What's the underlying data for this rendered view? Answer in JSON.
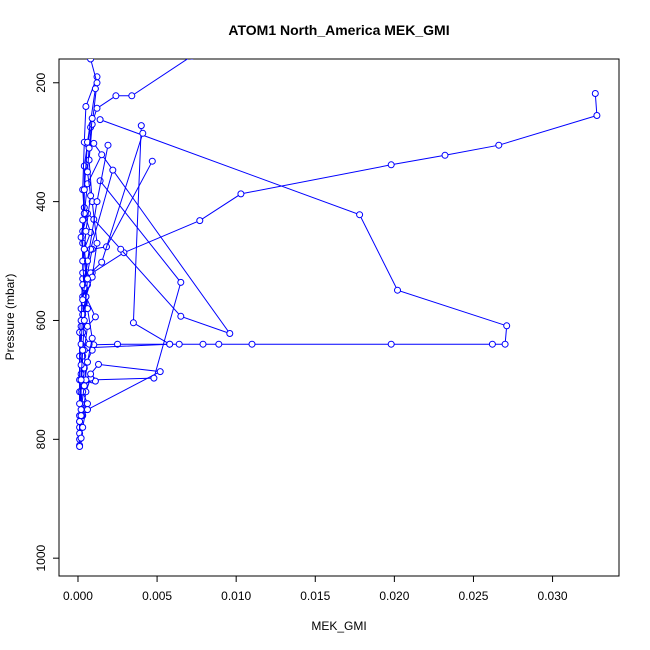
{
  "chart_data": {
    "type": "line",
    "title": "ATOM1 North_America MEK_GMI",
    "xlabel": "MEK_GMI",
    "ylabel": "Pressure (mbar)",
    "xlim": [
      -0.0012,
      0.0342
    ],
    "ylim": [
      1030,
      160
    ],
    "y_reversed": true,
    "grid": false,
    "x_ticks": [
      "0.000",
      "0.005",
      "0.010",
      "0.015",
      "0.020",
      "0.025",
      "0.030"
    ],
    "x_tick_values": [
      0,
      0.005,
      0.01,
      0.015,
      0.02,
      0.025,
      0.03
    ],
    "y_ticks": [
      "200",
      "400",
      "600",
      "800",
      "1000"
    ],
    "y_tick_values": [
      200,
      400,
      600,
      800,
      1000
    ],
    "series_color": "#0000ff",
    "series": [
      {
        "points": [
          [
            0.0327,
            218
          ],
          [
            0.0328,
            255
          ],
          [
            0.0266,
            305
          ],
          [
            0.0232,
            322
          ],
          [
            0.0198,
            338
          ],
          [
            0.0103,
            387
          ],
          [
            0.0077,
            432
          ],
          [
            0.0029,
            486
          ],
          [
            0.0009,
            520
          ],
          [
            0.0003,
            560
          ],
          [
            0.0002,
            610
          ],
          [
            0.0001,
            660
          ],
          [
            0.0001,
            720
          ],
          [
            0.0001,
            780
          ],
          [
            0.0001,
            810
          ]
        ]
      },
      {
        "points": [
          [
            0.0014,
            262
          ],
          [
            0.0178,
            422
          ],
          [
            0.0202,
            549
          ],
          [
            0.0271,
            609
          ],
          [
            0.027,
            640
          ],
          [
            0.0262,
            640
          ],
          [
            0.0198,
            640
          ],
          [
            0.011,
            640
          ],
          [
            0.0089,
            640
          ],
          [
            0.0079,
            640
          ],
          [
            0.0064,
            640
          ],
          [
            0.0058,
            640
          ],
          [
            0.0025,
            640
          ],
          [
            0.001,
            641
          ],
          [
            0.0006,
            645
          ],
          [
            0.0003,
            650
          ],
          [
            0.0002,
            690
          ],
          [
            0.0001,
            760
          ],
          [
            0.0001,
            800
          ]
        ]
      },
      {
        "points": [
          [
            0.0072,
            155
          ],
          [
            0.0034,
            222
          ],
          [
            0.0024,
            222
          ],
          [
            0.0012,
            243
          ],
          [
            0.0008,
            275
          ],
          [
            0.0006,
            303
          ],
          [
            0.0004,
            340
          ],
          [
            0.0004,
            410
          ],
          [
            0.0003,
            470
          ],
          [
            0.0003,
            530
          ],
          [
            0.0002,
            580
          ],
          [
            0.0001,
            620
          ],
          [
            0.0001,
            700
          ],
          [
            0.0001,
            770
          ],
          [
            0.0001,
            812
          ]
        ]
      },
      {
        "points": [
          [
            0.004,
            272
          ],
          [
            0.0035,
            604
          ],
          [
            0.0058,
            640
          ],
          [
            0.0006,
            646
          ],
          [
            0.0003,
            660
          ],
          [
            0.0002,
            720
          ],
          [
            0.0001,
            790
          ]
        ]
      },
      {
        "points": [
          [
            0.0047,
            332
          ],
          [
            0.0018,
            476
          ],
          [
            0.0009,
            480
          ],
          [
            0.0006,
            520
          ],
          [
            0.0004,
            570
          ]
        ]
      },
      {
        "points": [
          [
            0.0041,
            285
          ],
          [
            0.0015,
            502
          ],
          [
            0.0008,
            520
          ],
          [
            0.0005,
            560
          ]
        ]
      },
      {
        "points": [
          [
            0.0014,
            365
          ],
          [
            0.0065,
            536
          ],
          [
            0.0048,
            697
          ],
          [
            0.0009,
            700
          ],
          [
            0.0006,
            700
          ],
          [
            0.0003,
            705
          ],
          [
            0.0002,
            740
          ],
          [
            0.0001,
            770
          ]
        ]
      },
      {
        "points": [
          [
            0.001,
            302
          ],
          [
            0.0096,
            622
          ],
          [
            0.0065,
            593
          ],
          [
            0.0027,
            480
          ],
          [
            0.001,
            430
          ],
          [
            0.0006,
            420
          ],
          [
            0.0003,
            450
          ]
        ]
      },
      {
        "points": [
          [
            0.0012,
            190
          ],
          [
            0.0005,
            240
          ],
          [
            0.0004,
            300
          ],
          [
            0.0003,
            380
          ],
          [
            0.0004,
            420
          ],
          [
            0.0008,
            452
          ],
          [
            0.0004,
            480
          ],
          [
            0.0003,
            520
          ],
          [
            0.0005,
            560
          ],
          [
            0.0011,
            594
          ],
          [
            0.0006,
            610
          ],
          [
            0.0004,
            650
          ],
          [
            0.0005,
            700
          ],
          [
            0.0011,
            702
          ],
          [
            0.0008,
            697
          ],
          [
            0.0005,
            720
          ],
          [
            0.0003,
            760
          ]
        ]
      },
      {
        "points": [
          [
            0.0015,
            321
          ],
          [
            0.0006,
            370
          ],
          [
            0.0004,
            420
          ],
          [
            0.0002,
            460
          ],
          [
            0.0004,
            500
          ],
          [
            0.0006,
            540
          ],
          [
            0.0005,
            580
          ],
          [
            0.0003,
            620
          ],
          [
            0.0007,
            640
          ],
          [
            0.0009,
            650
          ],
          [
            0.0004,
            680
          ],
          [
            0.0003,
            720
          ],
          [
            0.0006,
            740
          ],
          [
            0.0005,
            750
          ],
          [
            0.0003,
            780
          ],
          [
            0.0002,
            798
          ]
        ]
      },
      {
        "points": [
          [
            0.0008,
            160
          ],
          [
            0.0012,
            200
          ],
          [
            0.0009,
            270
          ],
          [
            0.0007,
            330
          ],
          [
            0.0009,
            400
          ],
          [
            0.0012,
            470
          ],
          [
            0.0009,
            527
          ],
          [
            0.0005,
            560
          ],
          [
            0.0003,
            590
          ],
          [
            0.0002,
            640
          ],
          [
            0.0002,
            675
          ],
          [
            0.0002,
            760
          ]
        ]
      },
      {
        "points": [
          [
            0.0011,
            210
          ],
          [
            0.0006,
            300
          ],
          [
            0.0004,
            380
          ],
          [
            0.0003,
            431
          ],
          [
            0.0003,
            500
          ],
          [
            0.0004,
            545
          ],
          [
            0.0006,
            580
          ],
          [
            0.0009,
            630
          ],
          [
            0.0006,
            670
          ],
          [
            0.0004,
            710
          ],
          [
            0.0002,
            750
          ]
        ]
      },
      {
        "points": [
          [
            0.0022,
            347
          ],
          [
            0.0008,
            480
          ],
          [
            0.0003,
            540
          ],
          [
            0.0002,
            600
          ]
        ]
      },
      {
        "points": [
          [
            0.0019,
            305
          ],
          [
            0.0012,
            400
          ],
          [
            0.0006,
            500
          ],
          [
            0.0003,
            565
          ]
        ]
      },
      {
        "points": [
          [
            0.0006,
            750
          ],
          [
            0.0052,
            686
          ],
          [
            0.0013,
            674
          ],
          [
            0.0008,
            690
          ],
          [
            0.0005,
            700
          ]
        ]
      },
      {
        "points": [
          [
            0.0009,
            260
          ],
          [
            0.0007,
            310
          ],
          [
            0.0006,
            350
          ],
          [
            0.0008,
            390
          ],
          [
            0.0005,
            450
          ],
          [
            0.0004,
            480
          ],
          [
            0.0006,
            530
          ],
          [
            0.0004,
            600
          ],
          [
            0.0003,
            650
          ],
          [
            0.0002,
            700
          ],
          [
            0.0001,
            740
          ]
        ]
      }
    ]
  }
}
